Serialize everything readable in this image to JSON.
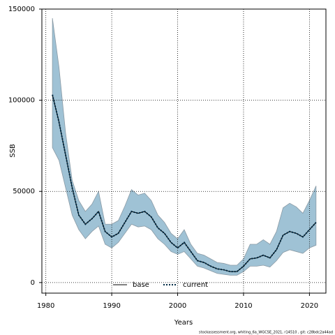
{
  "chart_data": {
    "type": "line",
    "xlabel": "Years",
    "ylabel": "SSB",
    "x": [
      1981,
      1982,
      1983,
      1984,
      1985,
      1986,
      1987,
      1988,
      1989,
      1990,
      1991,
      1992,
      1993,
      1994,
      1995,
      1996,
      1997,
      1998,
      1999,
      2000,
      2001,
      2002,
      2003,
      2004,
      2005,
      2006,
      2007,
      2008,
      2009,
      2010,
      2011,
      2012,
      2013,
      2014,
      2015,
      2016,
      2017,
      2018,
      2019,
      2020,
      2021
    ],
    "series": [
      {
        "name": "base",
        "color": "#000000",
        "dash": "solid",
        "values": [
          103000,
          88000,
          70000,
          52000,
          37000,
          32000,
          35000,
          39000,
          28000,
          25000,
          27000,
          33000,
          39000,
          38000,
          39000,
          36000,
          30000,
          27000,
          22000,
          19000,
          22000,
          17000,
          12000,
          11000,
          9000,
          7500,
          7000,
          6000,
          6000,
          9000,
          13000,
          13500,
          15000,
          13500,
          18000,
          26000,
          28000,
          27000,
          25000,
          29000,
          33000
        ]
      },
      {
        "name": "current",
        "color": "#002b45",
        "dash": "dotted",
        "values": [
          103000,
          88000,
          70000,
          52000,
          37000,
          32000,
          35000,
          39000,
          28000,
          25000,
          27000,
          33000,
          39000,
          38000,
          39000,
          36000,
          30000,
          27000,
          22000,
          19000,
          22000,
          17000,
          12000,
          11000,
          9000,
          7500,
          7000,
          6000,
          6000,
          9000,
          13000,
          13500,
          15000,
          13500,
          18000,
          26000,
          28000,
          27000,
          25000,
          29000,
          33000
        ]
      }
    ],
    "band": {
      "color": "#9fc2d5",
      "upper": [
        145000,
        118000,
        82000,
        56000,
        45000,
        39000,
        43000,
        50000,
        32000,
        32000,
        34000,
        42000,
        51000,
        48000,
        49000,
        45000,
        37000,
        33000,
        27000,
        24000,
        29000,
        21000,
        16000,
        15000,
        13000,
        11000,
        10500,
        9500,
        9500,
        13000,
        21000,
        21000,
        23500,
        21000,
        28000,
        41000,
        43500,
        41500,
        38000,
        45000,
        53000
      ],
      "lower": [
        74000,
        67000,
        52000,
        37000,
        29000,
        24000,
        28000,
        31000,
        21000,
        19000,
        22000,
        27000,
        32000,
        30500,
        31000,
        29000,
        24000,
        21000,
        17000,
        15500,
        17000,
        13000,
        9000,
        8000,
        6500,
        5000,
        4500,
        4000,
        4000,
        6000,
        9000,
        9000,
        9500,
        8500,
        12000,
        16500,
        18000,
        17000,
        16000,
        19000,
        20500
      ]
    },
    "xlim": [
      1979.4,
      2022.5
    ],
    "ylim": [
      -5800,
      150000
    ],
    "xticks": [
      1980,
      1990,
      2000,
      2010,
      2020
    ],
    "yticks": [
      0,
      50000,
      100000,
      150000
    ],
    "grid": true,
    "legend": "bottom",
    "footnote": "stockassessment.org, whiting_6a_WGCSE_2021, r14510 , git: c28bdc2a44ad"
  }
}
